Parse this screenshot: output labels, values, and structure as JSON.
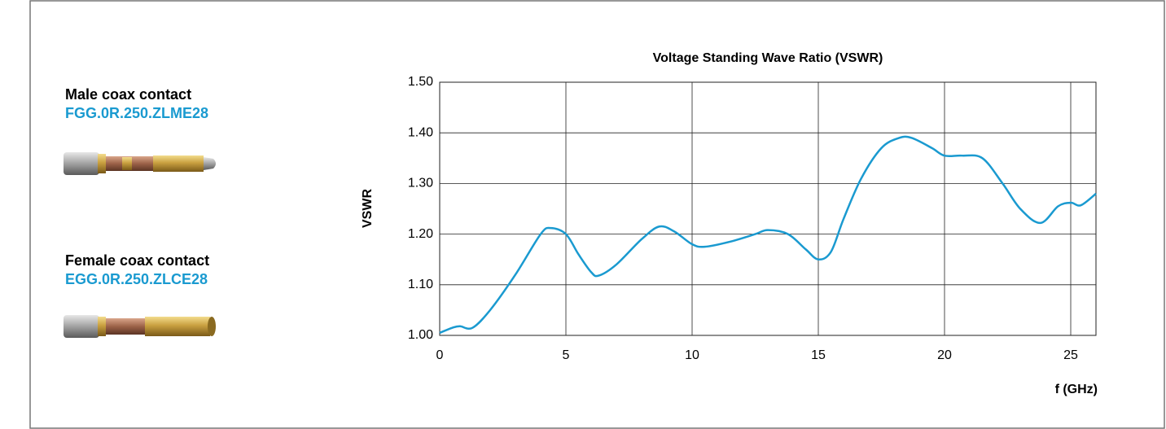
{
  "products": [
    {
      "label": "Male coax contact",
      "code": "FGG.0R.250.ZLME28"
    },
    {
      "label": "Female coax contact",
      "code": "EGG.0R.250.ZLCE28"
    }
  ],
  "chart_data": {
    "type": "line",
    "title": "Voltage Standing Wave Ratio (VSWR)",
    "x_label": "f (GHz)",
    "y_label": "VSWR",
    "x": [
      0,
      0.5,
      0.8,
      1.3,
      2,
      3,
      4,
      4.4,
      5,
      5.5,
      6,
      6.3,
      7,
      8,
      8.7,
      9.3,
      10,
      10.5,
      11.5,
      12.5,
      13,
      13.8,
      14.5,
      15,
      15.5,
      16,
      16.7,
      17.5,
      18.2,
      18.7,
      19.5,
      20,
      20.7,
      21.5,
      22.3,
      23,
      23.8,
      24.5,
      25,
      25.4,
      26
    ],
    "series": [
      {
        "name": "VSWR",
        "color": "#1a9ad0",
        "values": [
          1.005,
          1.015,
          1.018,
          1.015,
          1.05,
          1.12,
          1.2,
          1.212,
          1.2,
          1.16,
          1.125,
          1.118,
          1.14,
          1.19,
          1.215,
          1.205,
          1.18,
          1.175,
          1.185,
          1.2,
          1.208,
          1.2,
          1.17,
          1.15,
          1.165,
          1.23,
          1.31,
          1.37,
          1.39,
          1.39,
          1.37,
          1.355,
          1.355,
          1.35,
          1.3,
          1.25,
          1.222,
          1.255,
          1.262,
          1.257,
          1.28
        ]
      }
    ],
    "xlim": [
      0,
      26
    ],
    "xticks": [
      0,
      5,
      10,
      15,
      20,
      25
    ],
    "ylim": [
      1.0,
      1.5
    ],
    "yticks": [
      {
        "value": 1.0,
        "label": "1.00"
      },
      {
        "value": 1.1,
        "label": "1.10"
      },
      {
        "value": 1.2,
        "label": "1.20"
      },
      {
        "value": 1.3,
        "label": "1.30"
      },
      {
        "value": 1.4,
        "label": "1.40"
      },
      {
        "value": 1.5,
        "label": "1.50"
      }
    ],
    "grid": true
  }
}
